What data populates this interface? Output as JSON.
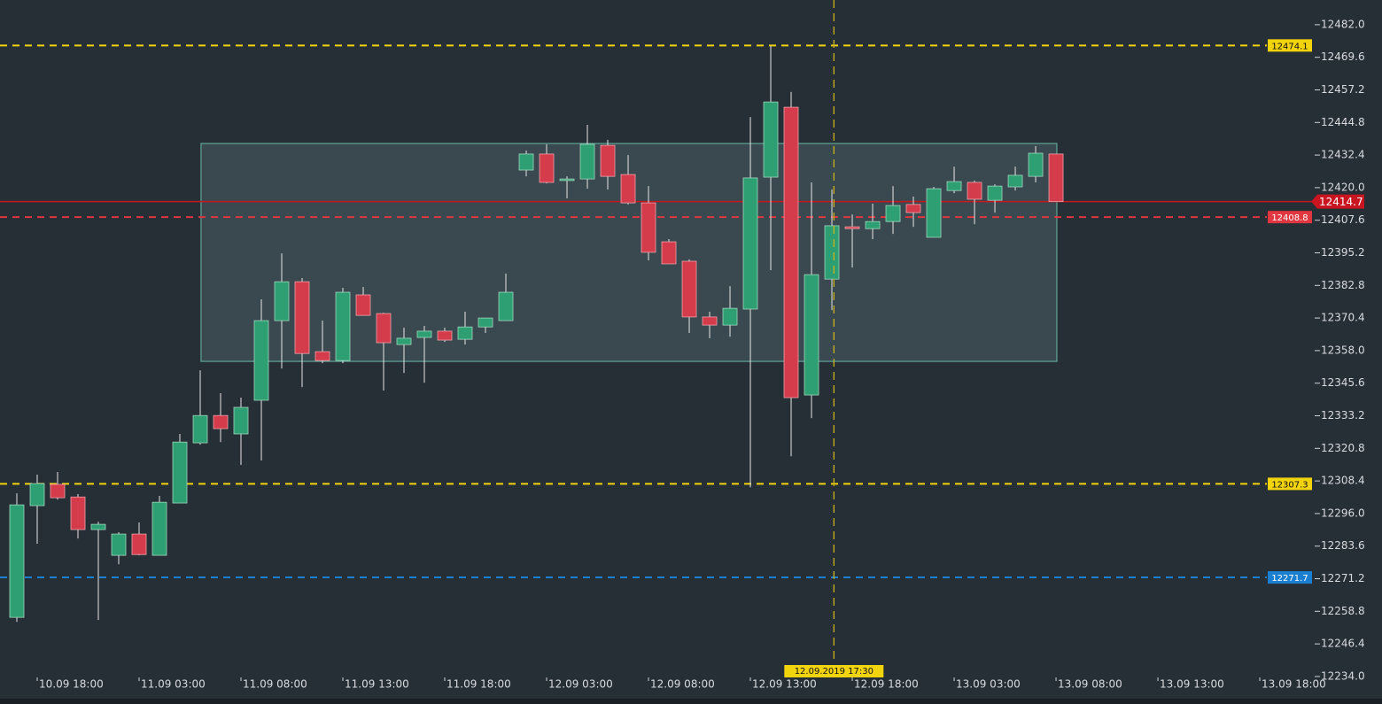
{
  "chart_data": {
    "type": "candlestick",
    "open": [
      12256.5,
      12299.0,
      12307.1,
      12302.3,
      12289.9,
      12280.1,
      12288.2,
      12280.1,
      12300.0,
      12322.9,
      12333.3,
      12326.3,
      12339.1,
      12369.4,
      12384.2,
      12357.6,
      12354.2,
      12379.2,
      12372.1,
      12360.3,
      12363.0,
      12365.4,
      12362.3,
      12367.0,
      12369.4,
      12426.7,
      12432.8,
      12422.7,
      12423.3,
      12436.1,
      12425.0,
      12414.2,
      12399.4,
      12392.0,
      12370.8,
      12367.7,
      12373.8,
      12424.0,
      12450.6,
      12341.1,
      12385.2,
      12405.1,
      12404.4,
      12407.1,
      12413.6,
      12401.1,
      12418.9,
      12422.0,
      12415.2,
      12420.3,
      12424.3,
      12432.8
    ],
    "high": [
      12303.7,
      12310.8,
      12311.8,
      12303.4,
      12292.9,
      12288.9,
      12292.6,
      12302.7,
      12326.3,
      12350.5,
      12341.8,
      12340.1,
      12377.5,
      12395.0,
      12385.6,
      12369.4,
      12381.9,
      12382.2,
      12372.4,
      12366.7,
      12367.4,
      12366.7,
      12372.8,
      12370.4,
      12387.3,
      12434.1,
      12436.5,
      12424.3,
      12443.9,
      12438.2,
      12432.4,
      12420.6,
      12400.4,
      12392.7,
      12372.8,
      12382.5,
      12446.9,
      12473.9,
      12456.4,
      12422.0,
      12419.3,
      12409.8,
      12413.9,
      12420.6,
      12416.6,
      12420.3,
      12428.0,
      12422.7,
      12421.3,
      12428.0,
      12435.8,
      12432.8
    ],
    "low": [
      12254.8,
      12284.5,
      12301.3,
      12286.5,
      12255.5,
      12276.7,
      12280.1,
      12280.1,
      12300.0,
      12322.2,
      12323.2,
      12314.5,
      12316.2,
      12351.2,
      12344.1,
      12353.2,
      12353.2,
      12371.4,
      12342.8,
      12349.5,
      12345.8,
      12361.3,
      12360.3,
      12364.7,
      12369.4,
      12424.3,
      12421.6,
      12415.9,
      12419.6,
      12419.3,
      12413.6,
      12392.3,
      12391.0,
      12364.7,
      12362.7,
      12363.3,
      12306.0,
      12388.6,
      12317.8,
      12332.3,
      12373.4,
      12389.6,
      12400.4,
      12402.4,
      12405.1,
      12401.1,
      12417.9,
      12406.1,
      12410.5,
      12418.9,
      12422.0,
      12414.7
    ],
    "close": [
      12299.3,
      12307.4,
      12302.0,
      12289.9,
      12291.9,
      12288.2,
      12280.4,
      12300.3,
      12323.2,
      12333.3,
      12328.3,
      12336.4,
      12369.4,
      12384.2,
      12356.9,
      12354.2,
      12380.2,
      12371.4,
      12361.0,
      12362.7,
      12365.4,
      12362.0,
      12367.0,
      12370.4,
      12380.2,
      12432.8,
      12422.0,
      12423.3,
      12436.5,
      12424.3,
      12414.2,
      12395.4,
      12391.0,
      12370.8,
      12367.7,
      12374.1,
      12423.7,
      12452.6,
      12340.1,
      12386.9,
      12405.5,
      12404.4,
      12407.1,
      12413.2,
      12410.5,
      12419.6,
      12422.3,
      12415.6,
      12420.6,
      12424.7,
      12433.1,
      12414.7
    ],
    "up_color": "#2e9f72",
    "down_color": "#d43c4b",
    "xlim": [
      -0.826,
      63.52
    ],
    "xticks": [
      {
        "value": 1,
        "label": "10.09 18:00"
      },
      {
        "value": 6,
        "label": "11.09 03:00"
      },
      {
        "value": 11,
        "label": "11.09 08:00"
      },
      {
        "value": 16,
        "label": "11.09 13:00"
      },
      {
        "value": 21,
        "label": "11.09 18:00"
      },
      {
        "value": 26,
        "label": "12.09 03:00"
      },
      {
        "value": 31,
        "label": "12.09 08:00"
      },
      {
        "value": 36,
        "label": "12.09 13:00"
      },
      {
        "value": 41,
        "label": "12.09 18:00"
      },
      {
        "value": 46,
        "label": "13.09 03:00"
      },
      {
        "value": 51,
        "label": "13.09 08:00"
      },
      {
        "value": 56,
        "label": "13.09 13:00"
      },
      {
        "value": 61,
        "label": "13.09 18:00"
      }
    ],
    "ylim": [
      12226.9,
      12491.4
    ],
    "yticks": [
      {
        "value": 12482,
        "label": "12482.0"
      },
      12469.6,
      12457.2,
      12444.8,
      12432.4,
      {
        "value": 12420,
        "label": "12420.0"
      },
      12407.6,
      12395.2,
      12382.8,
      12370.4,
      {
        "value": 12358,
        "label": "12358.0"
      },
      12345.6,
      12333.2,
      12320.8,
      12308.4,
      {
        "value": 12296,
        "label": "12296.0"
      },
      12283.6,
      12271.2,
      12258.8,
      12246.4,
      {
        "value": 12234,
        "label": "12234.0"
      }
    ],
    "hlines": [
      {
        "value": 12474.1,
        "color": "#f2d40c",
        "style": "dashed"
      },
      {
        "value": 12408.8,
        "color": "#e0363f",
        "style": "dashed"
      },
      {
        "value": 12307.3,
        "color": "#f2d40c",
        "style": "dashed"
      },
      {
        "value": 12271.7,
        "color": "#1a7fd0",
        "style": "dashed"
      }
    ],
    "last_price": {
      "value": 12414.7,
      "color": "#c8151f"
    },
    "zone": {
      "x": [
        9.04,
        51.04
      ],
      "y": [
        12353.9,
        12436.8
      ]
    },
    "crosshair": {
      "x": 40.1,
      "label": "12.09.2019 17:30"
    }
  }
}
